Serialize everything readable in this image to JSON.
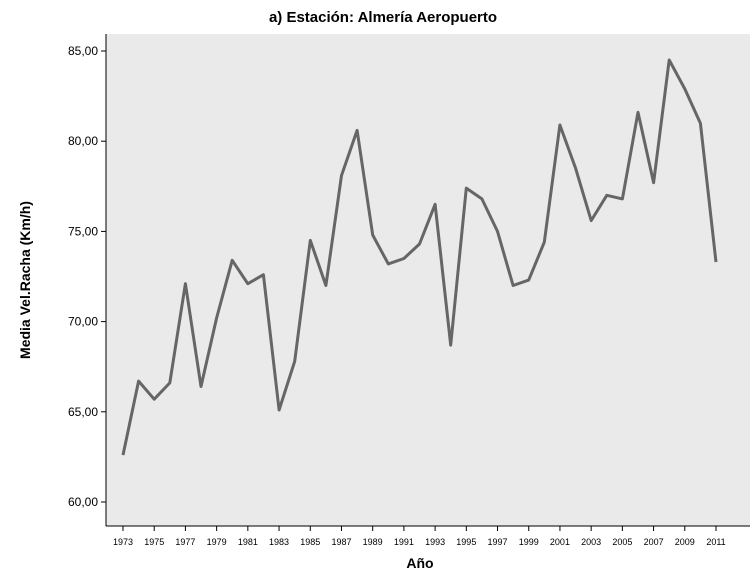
{
  "chart_data": {
    "type": "line",
    "title": "a)  Estación: Almería Aeropuerto",
    "xlabel": "Año",
    "ylabel": "Media Vel.Racha (Km/h)",
    "ylim": [
      58.5,
      87
    ],
    "xlim": [
      1971.7,
      1973.0
    ],
    "yticks": [
      "60,00",
      "65,00",
      "70,00",
      "75,00",
      "80,00",
      "85,00"
    ],
    "xticks": [
      "1973",
      "1975",
      "1977",
      "1979",
      "1981",
      "1983",
      "1985",
      "1987",
      "1989",
      "1991",
      "1993",
      "1995",
      "1997",
      "1999",
      "2001",
      "2003",
      "2005",
      "2007",
      "2009",
      "2011"
    ],
    "grid": false,
    "plot_background": "#eaeaea",
    "line_color": "#666666",
    "series": [
      {
        "x": [
          1973,
          1974,
          1975,
          1976,
          1977,
          1978,
          1979,
          1980,
          1981,
          1982,
          1983,
          1984,
          1985,
          1986,
          1987,
          1988,
          1989,
          1990,
          1991,
          1992,
          1993,
          1994,
          1995,
          1996,
          1997,
          1998,
          1999,
          2000,
          2001,
          2002,
          2003,
          2004,
          2005,
          2006,
          2007,
          2008,
          2009,
          2010,
          2011
        ],
        "values": [
          62.6,
          66.7,
          65.7,
          66.6,
          72.1,
          66.4,
          70.2,
          73.4,
          72.1,
          72.6,
          65.1,
          67.8,
          74.5,
          72.0,
          78.1,
          80.6,
          74.8,
          73.2,
          73.5,
          74.3,
          76.5,
          68.7,
          77.4,
          76.8,
          75.0,
          72.0,
          72.3,
          74.4,
          80.9,
          78.5,
          75.6,
          77.0,
          76.8,
          81.6,
          77.7,
          84.5,
          82.9,
          81.0,
          73.3
        ]
      }
    ]
  }
}
